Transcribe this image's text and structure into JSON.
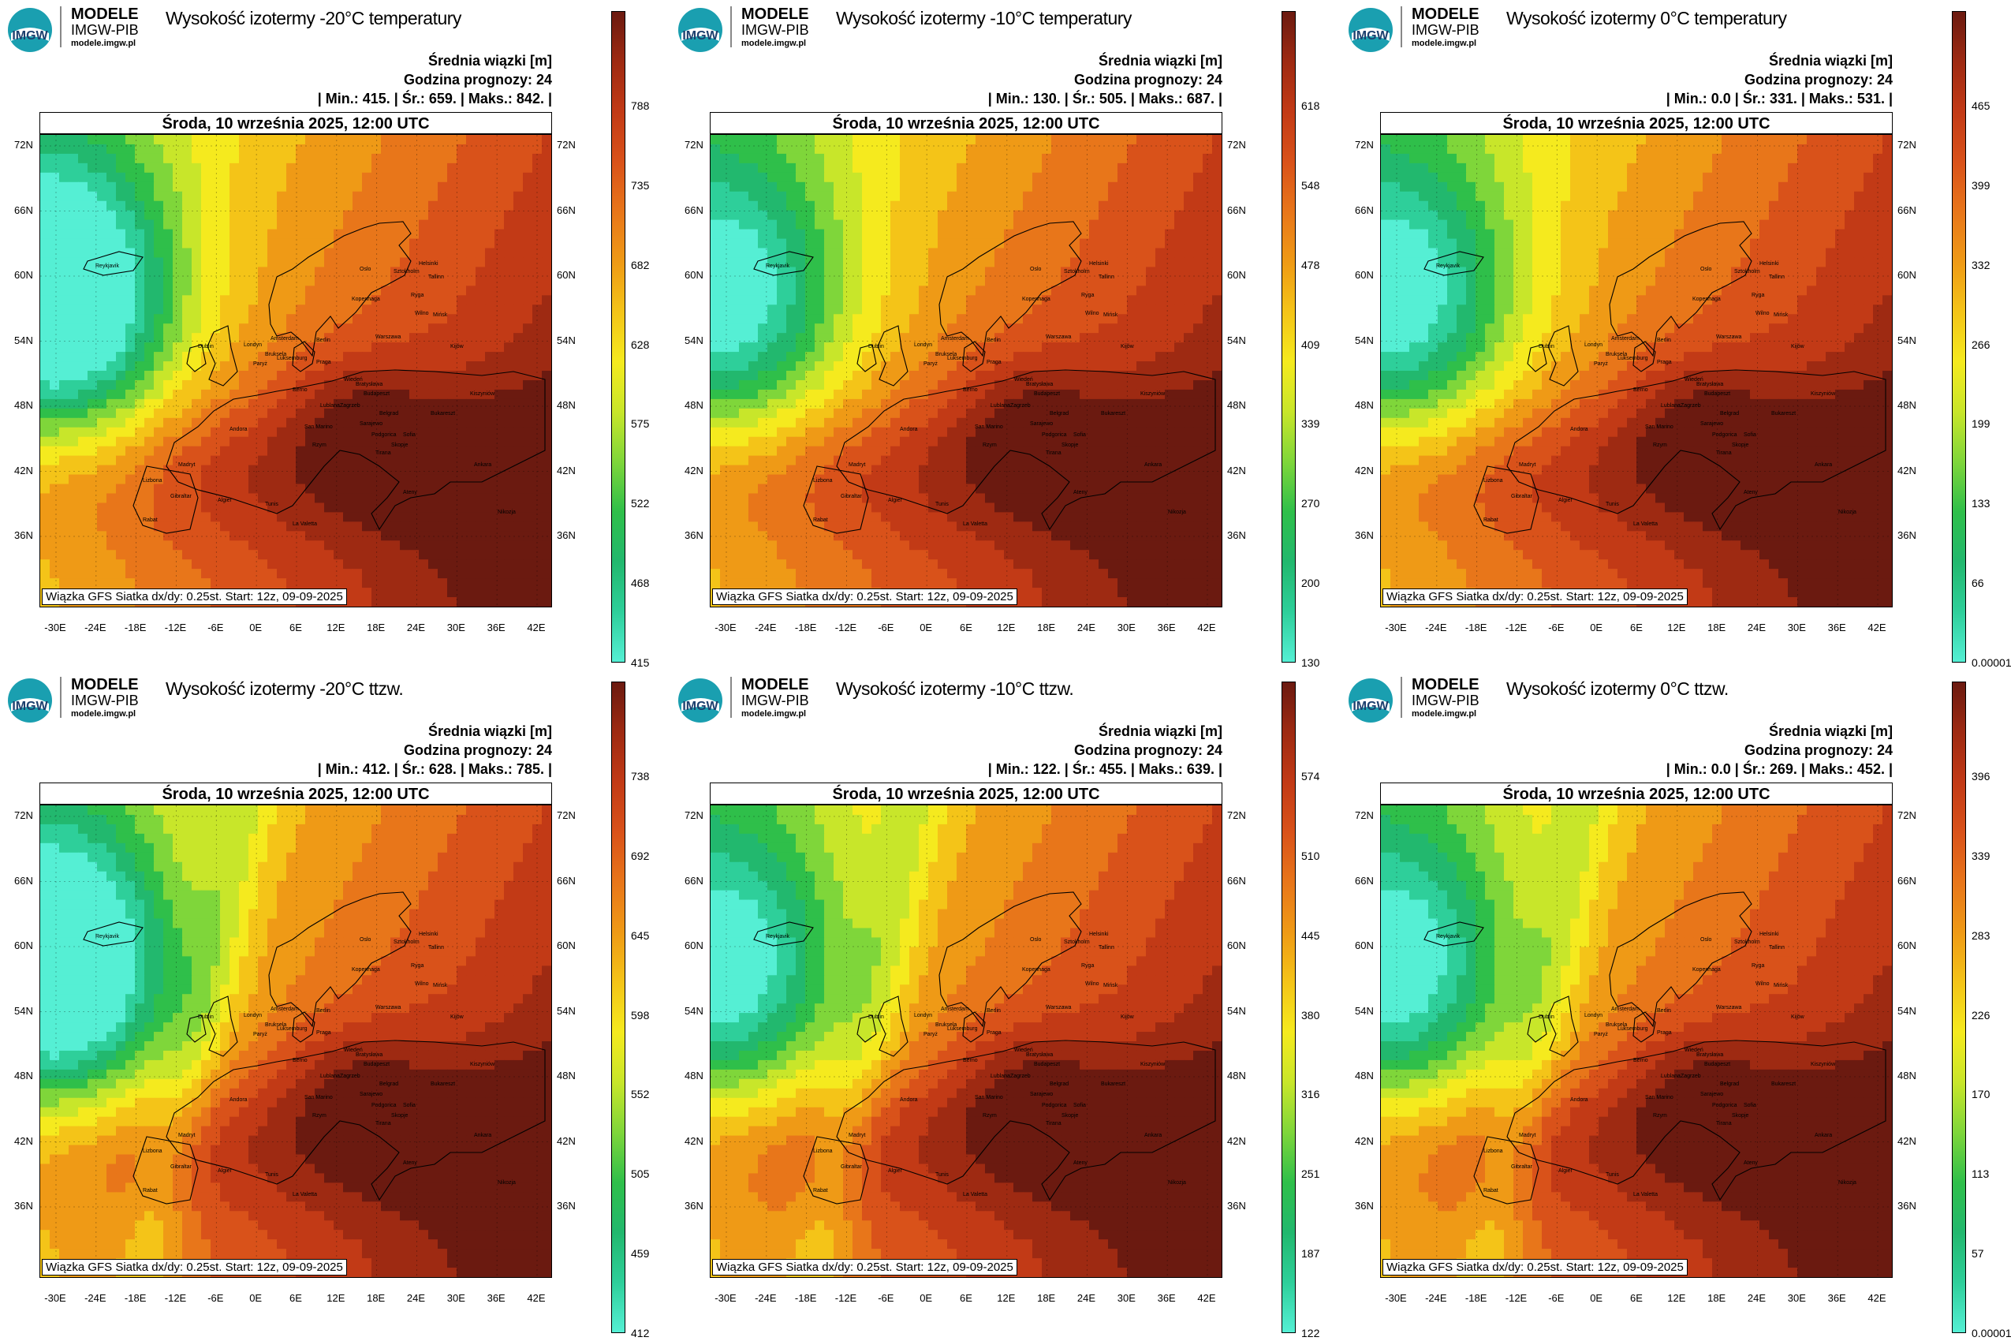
{
  "brand": {
    "name": "MODELE",
    "org": "IMGW-PIB",
    "url": "modele.imgw.pl",
    "logo_text": "IMGW"
  },
  "common": {
    "subtitle": "Średnia wiązki [m]",
    "forecast_hour": "Godzina prognozy: 24",
    "date": "Środa, 10 września 2025, 12:00 UTC",
    "footer": "Wiązka GFS Siatka dx/dy: 0.25st. Start: 12z, 09-09-2025"
  },
  "axes": {
    "lat_ticks": [
      "72N",
      "66N",
      "60N",
      "54N",
      "48N",
      "42N",
      "36N"
    ],
    "lon_ticks": [
      "-30E",
      "-24E",
      "-18E",
      "-12E",
      "-6E",
      "0E",
      "6E",
      "12E",
      "18E",
      "24E",
      "30E",
      "36E",
      "42E"
    ]
  },
  "cities": [
    "Oslo",
    "Sztokholm",
    "Helsinki",
    "Tallinn",
    "Ryga",
    "Wilno",
    "Mińsk",
    "Kopenhaga",
    "Amsterdam",
    "Berlin",
    "Warszawa",
    "Londyn",
    "Bruksela",
    "Luksemburg",
    "Paryż",
    "Praga",
    "Kijów",
    "Wiedeń",
    "Bratysława",
    "Berno",
    "Budapeszt",
    "Kiszyniów",
    "Zagrzeb",
    "Lublana",
    "Belgrad",
    "Bukareszt",
    "Sarajewo",
    "San Marino",
    "Podgorica",
    "Sofia",
    "Andora",
    "Rzym",
    "Skopje",
    "Tirana",
    "Madryt",
    "Ankara",
    "Lizbona",
    "Ateny",
    "Gibraltar",
    "Algier",
    "Tunis",
    "Rabat",
    "La Valetta",
    "Nikozja",
    "Reykjavik",
    "Dublin"
  ],
  "colorscale": [
    "#55efd4",
    "#2ecf9a",
    "#22b86e",
    "#2fbf4a",
    "#7fd63a",
    "#c8e62a",
    "#f5ea1e",
    "#f4c418",
    "#ef9a16",
    "#e8761a",
    "#d9521a",
    "#c23a16",
    "#9e2a12",
    "#6b1a10"
  ],
  "chart_data": [
    {
      "type": "heatmap",
      "title": "Wysokość izotermy -20°C temperatury",
      "unit": "m",
      "min": "415.",
      "mean": "659.",
      "max": "842.",
      "colorbar_ticks": [
        "788",
        "735",
        "682",
        "628",
        "575",
        "522",
        "468",
        "415"
      ],
      "colorbar_range": [
        415,
        842
      ]
    },
    {
      "type": "heatmap",
      "title": "Wysokość izotermy -10°C temperatury",
      "unit": "m",
      "min": "130.",
      "mean": "505.",
      "max": "687.",
      "colorbar_ticks": [
        "618",
        "548",
        "478",
        "409",
        "339",
        "270",
        "200",
        "130"
      ],
      "colorbar_range": [
        130,
        687
      ]
    },
    {
      "type": "heatmap",
      "title": "Wysokość izotermy 0°C temperatury",
      "unit": "m",
      "min": "0.0",
      "mean": "331.",
      "max": "531.",
      "colorbar_ticks": [
        "465",
        "399",
        "332",
        "266",
        "199",
        "133",
        "66",
        "0.00001"
      ],
      "colorbar_range": [
        1e-05,
        531
      ]
    },
    {
      "type": "heatmap",
      "title": "Wysokość izotermy -20°C ttzw.",
      "unit": "m",
      "min": "412.",
      "mean": "628.",
      "max": "785.",
      "colorbar_ticks": [
        "738",
        "692",
        "645",
        "598",
        "552",
        "505",
        "459",
        "412"
      ],
      "colorbar_range": [
        412,
        785
      ]
    },
    {
      "type": "heatmap",
      "title": "Wysokość izotermy -10°C ttzw.",
      "unit": "m",
      "min": "122.",
      "mean": "455.",
      "max": "639.",
      "colorbar_ticks": [
        "574",
        "510",
        "445",
        "380",
        "316",
        "251",
        "187",
        "122"
      ],
      "colorbar_range": [
        122,
        639
      ]
    },
    {
      "type": "heatmap",
      "title": "Wysokość izotermy 0°C ttzw.",
      "unit": "m",
      "min": "0.0",
      "mean": "269.",
      "max": "452.",
      "colorbar_ticks": [
        "396",
        "339",
        "283",
        "226",
        "170",
        "113",
        "57",
        "0.00001"
      ],
      "colorbar_range": [
        1e-05,
        452
      ]
    }
  ]
}
